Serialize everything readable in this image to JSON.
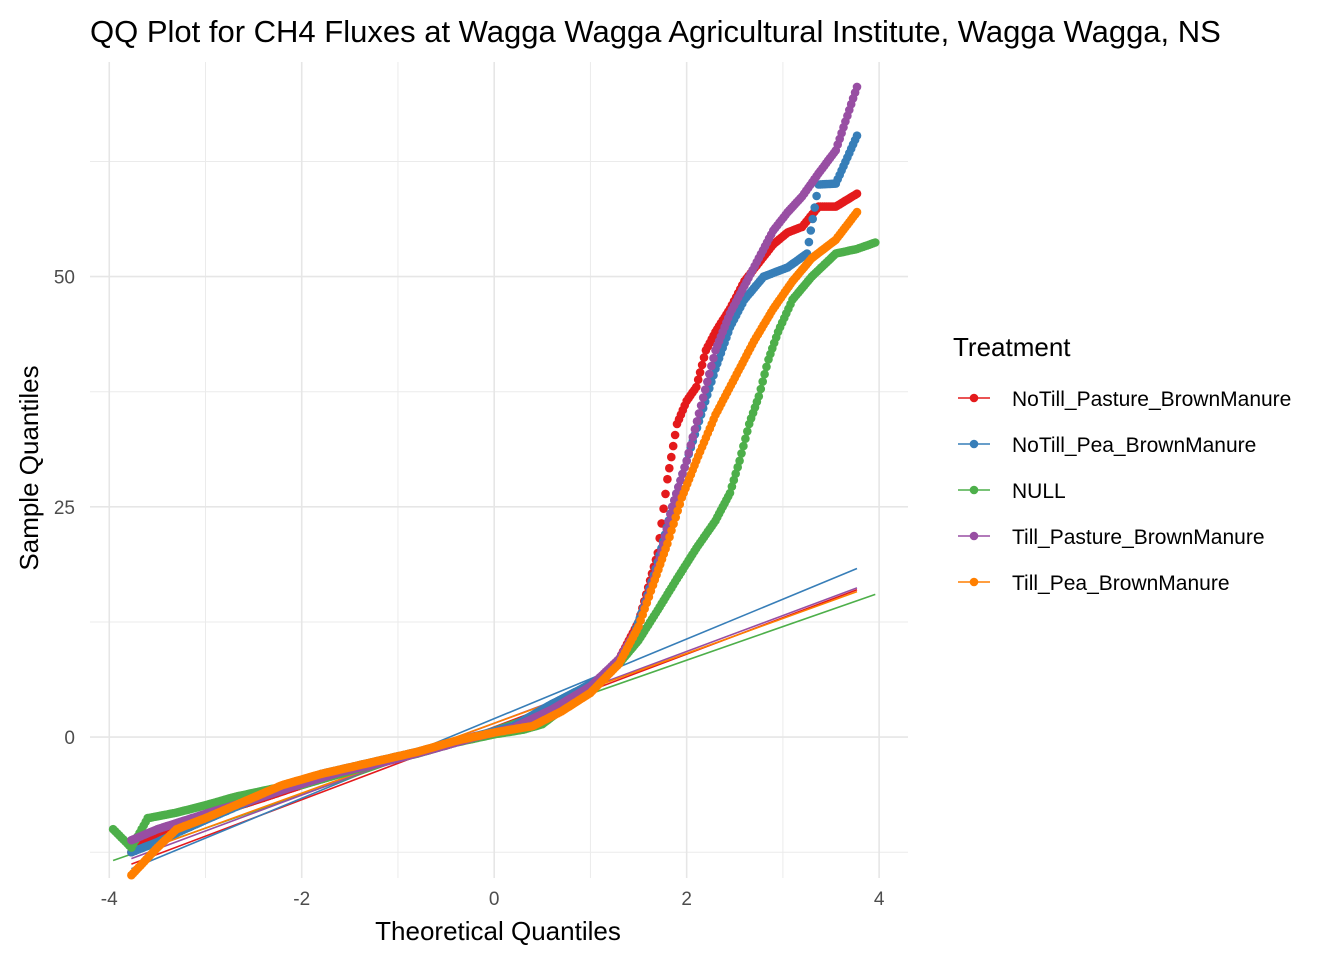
{
  "chart_data": {
    "type": "scatter",
    "title": "QQ Plot for CH4 Fluxes at Wagga Wagga Agricultural Institute, Wagga Wagga, NS",
    "xlabel": "Theoretical Quantiles",
    "ylabel": "Sample Quantiles",
    "xlim": [
      -4.2,
      4.3
    ],
    "ylim": [
      -15.3,
      73.3
    ],
    "x_ticks": [
      -4,
      -2,
      0,
      2,
      4
    ],
    "x_tick_labels": [
      "-4",
      "-2",
      "0",
      "2",
      "4"
    ],
    "y_ticks": [
      0,
      25,
      50
    ],
    "y_tick_labels": [
      "0",
      "25",
      "50"
    ],
    "grid": true,
    "legend": {
      "title": "Treatment",
      "position": "right"
    },
    "series": [
      {
        "name": "NoTill_Pasture_BrownManure",
        "color": "#E41A1C",
        "points": [
          [
            -3.77,
            -12.5
          ],
          [
            -3.5,
            -10.5
          ],
          [
            -3.2,
            -9.2
          ],
          [
            -3.0,
            -8.5
          ],
          [
            -2.7,
            -7.6
          ],
          [
            -2.4,
            -6.6
          ],
          [
            -2.0,
            -5.2
          ],
          [
            -1.5,
            -3.5
          ],
          [
            -1.0,
            -2.2
          ],
          [
            -0.5,
            -0.9
          ],
          [
            -0.2,
            0.1
          ],
          [
            0.2,
            0.8
          ],
          [
            0.5,
            1.8
          ],
          [
            0.8,
            3.8
          ],
          [
            1.1,
            6.2
          ],
          [
            1.3,
            8.5
          ],
          [
            1.5,
            12.5
          ],
          [
            1.7,
            20.0
          ],
          [
            1.8,
            28.0
          ],
          [
            1.9,
            34.0
          ],
          [
            2.0,
            36.5
          ],
          [
            2.1,
            38.0
          ],
          [
            2.2,
            42.0
          ],
          [
            2.3,
            44.0
          ],
          [
            2.45,
            46.5
          ],
          [
            2.6,
            49.5
          ],
          [
            2.75,
            51.5
          ],
          [
            2.9,
            53.5
          ],
          [
            3.05,
            54.8
          ],
          [
            3.2,
            55.4
          ],
          [
            3.37,
            57.6
          ],
          [
            3.55,
            57.6
          ],
          [
            3.77,
            59.0
          ]
        ],
        "line": [
          [
            -3.77,
            -13.8
          ],
          [
            3.77,
            16.0
          ]
        ]
      },
      {
        "name": "NoTill_Pea_BrownManure",
        "color": "#377EB8",
        "points": [
          [
            -3.77,
            -12.5
          ],
          [
            -3.5,
            -11.4
          ],
          [
            -3.3,
            -10.4
          ],
          [
            -3.0,
            -9.0
          ],
          [
            -2.6,
            -7.2
          ],
          [
            -2.2,
            -5.6
          ],
          [
            -1.8,
            -4.0
          ],
          [
            -1.3,
            -2.8
          ],
          [
            -0.8,
            -1.6
          ],
          [
            -0.3,
            -0.2
          ],
          [
            0.2,
            1.2
          ],
          [
            0.6,
            3.6
          ],
          [
            0.9,
            5.2
          ],
          [
            1.2,
            7.0
          ],
          [
            1.4,
            9.6
          ],
          [
            1.55,
            14.0
          ],
          [
            1.7,
            19.0
          ],
          [
            1.85,
            25.0
          ],
          [
            2.0,
            30.0
          ],
          [
            2.15,
            35.0
          ],
          [
            2.3,
            40.0
          ],
          [
            2.45,
            44.5
          ],
          [
            2.6,
            47.5
          ],
          [
            2.8,
            50.0
          ],
          [
            3.05,
            51.0
          ],
          [
            3.25,
            52.5
          ],
          [
            3.37,
            60.0
          ],
          [
            3.55,
            60.1
          ],
          [
            3.77,
            65.3
          ]
        ],
        "line": [
          [
            -3.77,
            -14.3
          ],
          [
            3.77,
            18.3
          ]
        ]
      },
      {
        "name": "NULL",
        "color": "#4DAF4A",
        "points": [
          [
            -3.96,
            -10.0
          ],
          [
            -3.77,
            -12.0
          ],
          [
            -3.6,
            -8.8
          ],
          [
            -3.3,
            -8.2
          ],
          [
            -3.0,
            -7.4
          ],
          [
            -2.7,
            -6.5
          ],
          [
            -2.3,
            -5.6
          ],
          [
            -2.0,
            -5.2
          ],
          [
            -1.6,
            -4.0
          ],
          [
            -1.2,
            -2.8
          ],
          [
            -0.8,
            -1.8
          ],
          [
            -0.4,
            -0.6
          ],
          [
            0.0,
            0.3
          ],
          [
            0.3,
            0.8
          ],
          [
            0.5,
            1.4
          ],
          [
            0.7,
            3.0
          ],
          [
            0.9,
            4.3
          ],
          [
            1.1,
            6.0
          ],
          [
            1.3,
            8.0
          ],
          [
            1.5,
            10.5
          ],
          [
            1.7,
            13.8
          ],
          [
            1.9,
            17.2
          ],
          [
            2.1,
            20.5
          ],
          [
            2.3,
            23.5
          ],
          [
            2.45,
            26.5
          ],
          [
            2.55,
            30.0
          ],
          [
            2.65,
            34.0
          ],
          [
            2.75,
            37.0
          ],
          [
            2.85,
            41.0
          ],
          [
            2.95,
            44.0
          ],
          [
            3.1,
            47.5
          ],
          [
            3.3,
            50.0
          ],
          [
            3.55,
            52.5
          ],
          [
            3.77,
            53.0
          ],
          [
            3.96,
            53.7
          ]
        ],
        "line": [
          [
            -3.96,
            -13.4
          ],
          [
            3.96,
            15.5
          ]
        ]
      },
      {
        "name": "Till_Pasture_BrownManure",
        "color": "#984EA3",
        "points": [
          [
            -3.77,
            -11.2
          ],
          [
            -3.5,
            -10.0
          ],
          [
            -3.2,
            -9.0
          ],
          [
            -2.9,
            -8.0
          ],
          [
            -2.5,
            -6.8
          ],
          [
            -2.1,
            -5.4
          ],
          [
            -1.6,
            -3.8
          ],
          [
            -1.1,
            -2.6
          ],
          [
            -0.6,
            -1.2
          ],
          [
            -0.2,
            0.0
          ],
          [
            0.2,
            1.0
          ],
          [
            0.6,
            3.0
          ],
          [
            1.0,
            5.5
          ],
          [
            1.3,
            8.5
          ],
          [
            1.5,
            12.0
          ],
          [
            1.7,
            18.5
          ],
          [
            1.85,
            25.0
          ],
          [
            2.0,
            30.0
          ],
          [
            2.15,
            36.0
          ],
          [
            2.3,
            42.0
          ],
          [
            2.45,
            46.0
          ],
          [
            2.6,
            49.0
          ],
          [
            2.75,
            52.0
          ],
          [
            2.9,
            55.0
          ],
          [
            3.05,
            57.0
          ],
          [
            3.2,
            58.7
          ],
          [
            3.37,
            61.2
          ],
          [
            3.55,
            63.7
          ],
          [
            3.77,
            70.6
          ]
        ],
        "line": [
          [
            -3.77,
            -13.2
          ],
          [
            3.77,
            16.2
          ]
        ]
      },
      {
        "name": "Till_Pea_BrownManure",
        "color": "#FF7F00",
        "points": [
          [
            -3.77,
            -15.0
          ],
          [
            -3.5,
            -12.0
          ],
          [
            -3.3,
            -10.0
          ],
          [
            -3.0,
            -8.8
          ],
          [
            -2.6,
            -7.0
          ],
          [
            -2.2,
            -5.2
          ],
          [
            -1.8,
            -4.0
          ],
          [
            -1.3,
            -2.8
          ],
          [
            -0.8,
            -1.6
          ],
          [
            -0.4,
            -0.4
          ],
          [
            0.0,
            0.5
          ],
          [
            0.4,
            1.2
          ],
          [
            0.7,
            2.8
          ],
          [
            1.0,
            4.8
          ],
          [
            1.3,
            8.0
          ],
          [
            1.5,
            12.0
          ],
          [
            1.65,
            16.5
          ],
          [
            1.8,
            21.0
          ],
          [
            1.95,
            26.0
          ],
          [
            2.1,
            30.0
          ],
          [
            2.3,
            35.0
          ],
          [
            2.5,
            39.0
          ],
          [
            2.7,
            43.0
          ],
          [
            2.9,
            46.5
          ],
          [
            3.1,
            49.5
          ],
          [
            3.3,
            52.0
          ],
          [
            3.55,
            54.0
          ],
          [
            3.77,
            57.0
          ]
        ],
        "line": [
          [
            -3.77,
            -12.8
          ],
          [
            3.77,
            15.8
          ]
        ]
      }
    ]
  }
}
